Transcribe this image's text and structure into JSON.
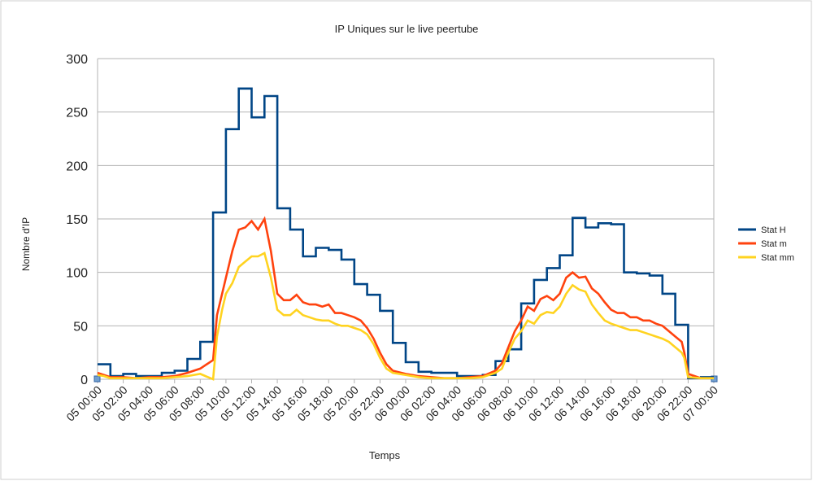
{
  "chart_data": {
    "type": "line",
    "title": "IP Uniques sur le live peertube",
    "xlabel": "Temps",
    "ylabel": "Nombre d'IP",
    "ylim": [
      0,
      300
    ],
    "yticks": [
      "0",
      "50",
      "100",
      "150",
      "200",
      "250",
      "300"
    ],
    "xlim_hours": [
      0,
      48
    ],
    "xtick_labels": [
      "05 00:00",
      "05 02:00",
      "05 04:00",
      "05 06:00",
      "05 08:00",
      "05 10:00",
      "05 12:00",
      "05 14:00",
      "05 16:00",
      "05 18:00",
      "05 20:00",
      "05 22:00",
      "06 00:00",
      "06 02:00",
      "06 04:00",
      "06 06:00",
      "06 08:00",
      "06 10:00",
      "06 12:00",
      "06 14:00",
      "06 16:00",
      "06 18:00",
      "06 20:00",
      "06 22:00",
      "07 00:00"
    ],
    "grid": "horizontal",
    "legend_position": "right",
    "series": [
      {
        "name": "Stat H",
        "color": "#004586",
        "step_hourly": true,
        "values": [
          14,
          3,
          5,
          3,
          3,
          6,
          8,
          19,
          35,
          156,
          234,
          272,
          245,
          265,
          160,
          140,
          115,
          123,
          121,
          112,
          89,
          79,
          64,
          34,
          16,
          7,
          6,
          6,
          3,
          3,
          4,
          17,
          28,
          71,
          93,
          104,
          116,
          151,
          142,
          146,
          145,
          100,
          99,
          97,
          80,
          51,
          1,
          2
        ]
      },
      {
        "name": "Stat m",
        "color": "#ff420e",
        "x_hours": [
          0,
          0.5,
          1,
          2,
          3,
          4,
          5,
          6,
          7,
          8,
          9,
          9.3,
          9.7,
          10,
          10.5,
          11,
          11.5,
          12,
          12.5,
          13,
          13.5,
          14,
          14.5,
          15,
          15.5,
          16,
          16.5,
          17,
          17.5,
          18,
          18.5,
          19,
          19.5,
          20,
          20.5,
          21,
          21.5,
          22,
          22.5,
          23,
          24,
          25,
          26,
          27,
          28,
          29,
          30,
          31,
          31.5,
          32,
          32.5,
          33,
          33.5,
          34,
          34.5,
          35,
          35.5,
          36,
          36.5,
          37,
          37.5,
          38,
          38.5,
          39,
          39.5,
          40,
          40.5,
          41,
          41.5,
          42,
          42.5,
          43,
          43.5,
          44,
          44.5,
          45,
          45.5,
          45.7,
          46,
          47,
          48
        ],
        "values": [
          6,
          4,
          2,
          2,
          1,
          2,
          2,
          3,
          6,
          10,
          18,
          60,
          80,
          95,
          120,
          140,
          142,
          148,
          140,
          150,
          120,
          80,
          74,
          74,
          79,
          72,
          70,
          70,
          68,
          70,
          62,
          62,
          60,
          58,
          55,
          48,
          38,
          25,
          14,
          8,
          5,
          3,
          2,
          1,
          1,
          2,
          3,
          8,
          15,
          30,
          45,
          55,
          68,
          64,
          75,
          78,
          74,
          80,
          95,
          100,
          95,
          96,
          85,
          80,
          72,
          65,
          62,
          62,
          58,
          58,
          55,
          55,
          52,
          50,
          45,
          40,
          35,
          25,
          5,
          1,
          1
        ]
      },
      {
        "name": "Stat mm",
        "color": "#ffd320",
        "x_hours": [
          0,
          0.5,
          1,
          2,
          3,
          4,
          5,
          6,
          7,
          8,
          9,
          9.3,
          9.7,
          10,
          10.5,
          11,
          11.5,
          12,
          12.5,
          13,
          13.5,
          14,
          14.5,
          15,
          15.5,
          16,
          16.5,
          17,
          17.5,
          18,
          18.5,
          19,
          19.5,
          20,
          20.5,
          21,
          21.5,
          22,
          22.5,
          23,
          24,
          25,
          26,
          27,
          28,
          29,
          30,
          31,
          31.5,
          32,
          32.5,
          33,
          33.5,
          34,
          34.5,
          35,
          35.5,
          36,
          36.5,
          37,
          37.5,
          38,
          38.5,
          39,
          39.5,
          40,
          40.5,
          41,
          41.5,
          42,
          42.5,
          43,
          43.5,
          44,
          44.5,
          45,
          45.5,
          45.7,
          46,
          47,
          48
        ],
        "values": [
          4,
          3,
          1,
          1,
          1,
          1,
          1,
          2,
          3,
          5,
          0,
          40,
          65,
          80,
          90,
          105,
          110,
          115,
          115,
          118,
          95,
          65,
          60,
          60,
          65,
          60,
          58,
          56,
          55,
          55,
          52,
          50,
          50,
          48,
          46,
          42,
          33,
          20,
          10,
          6,
          4,
          2,
          1,
          1,
          1,
          1,
          2,
          6,
          10,
          25,
          38,
          45,
          55,
          52,
          60,
          63,
          62,
          68,
          80,
          88,
          84,
          82,
          70,
          62,
          55,
          52,
          50,
          48,
          46,
          46,
          44,
          42,
          40,
          38,
          35,
          30,
          25,
          20,
          2,
          1,
          1
        ]
      }
    ]
  }
}
